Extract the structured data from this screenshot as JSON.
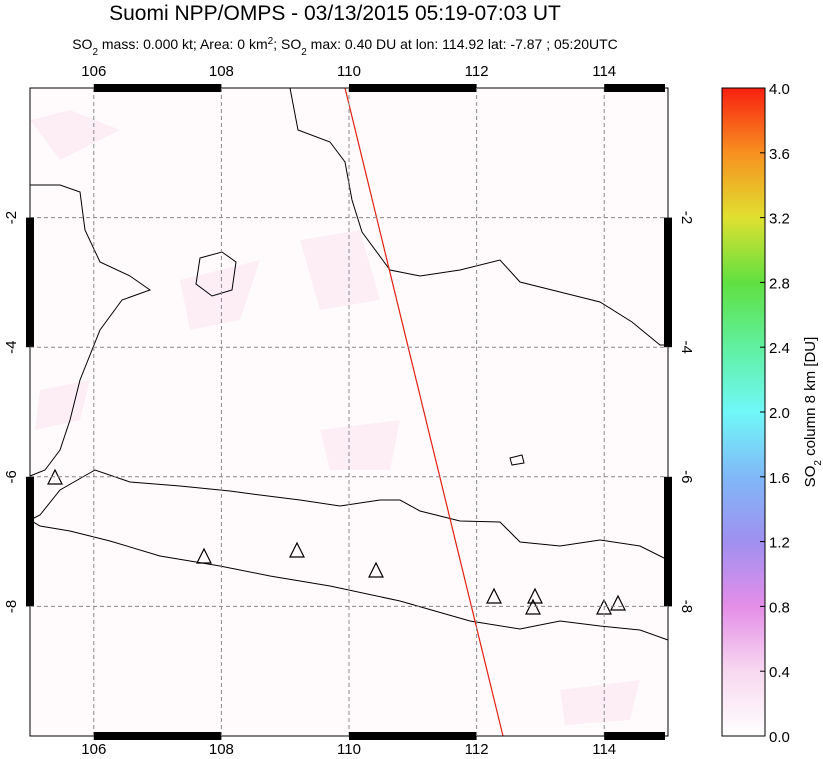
{
  "title": "Suomi NPP/OMPS - 03/13/2015 05:19-07:03 UT",
  "subtitle": [
    "SO",
    "2",
    " mass: 0.000 kt; Area: 0 km",
    "2",
    "; SO",
    "2",
    " max: 0.40 DU at lon: 114.92 lat: -7.87 ; 05:20UTC"
  ],
  "map": {
    "xlim": [
      105,
      115
    ],
    "ylim": [
      -10,
      0
    ],
    "xticks": [
      106,
      108,
      110,
      112,
      114
    ],
    "yticks": [
      -2,
      -4,
      -6,
      -8
    ]
  },
  "colorbar": {
    "title": [
      "SO",
      "2",
      " column 8 km [DU]"
    ],
    "lim": [
      0,
      4
    ],
    "ticks": [
      {
        "value": 0,
        "label": "0.0"
      },
      {
        "value": 0.4,
        "label": "0.4"
      },
      {
        "value": 0.8,
        "label": "0.8"
      },
      {
        "value": 1.2,
        "label": "1.2"
      },
      {
        "value": 1.6,
        "label": "1.6"
      },
      {
        "value": 2,
        "label": "2.0"
      },
      {
        "value": 2.4,
        "label": "2.4"
      },
      {
        "value": 2.8,
        "label": "2.8"
      },
      {
        "value": 3.2,
        "label": "3.2"
      },
      {
        "value": 3.6,
        "label": "3.6"
      },
      {
        "value": 4,
        "label": "4.0"
      }
    ]
  }
}
